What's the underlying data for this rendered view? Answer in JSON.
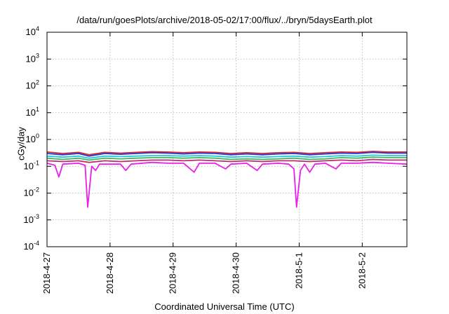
{
  "chart_data": {
    "type": "line",
    "title": "/data/run/goesPlots/archive/2018-05-02/17:00/flux/../bryn/5daysEarth.plot",
    "xlabel": "Coordinated Universal Time (UTC)",
    "ylabel": "cGy/day",
    "yscale": "log",
    "ylim": [
      0.0001,
      10000
    ],
    "y_ticks": [
      {
        "value": 0.0001,
        "mant": "10",
        "exp": "-4"
      },
      {
        "value": 0.001,
        "mant": "10",
        "exp": "-3"
      },
      {
        "value": 0.01,
        "mant": "10",
        "exp": "-2"
      },
      {
        "value": 0.1,
        "mant": "10",
        "exp": "-1"
      },
      {
        "value": 1,
        "mant": "10",
        "exp": "0"
      },
      {
        "value": 10,
        "mant": "10",
        "exp": "1"
      },
      {
        "value": 100,
        "mant": "10",
        "exp": "2"
      },
      {
        "value": 1000,
        "mant": "10",
        "exp": "3"
      },
      {
        "value": 10000,
        "mant": "10",
        "exp": "4"
      }
    ],
    "xlim": [
      "2018-04-27T00:00",
      "2018-05-02T17:00"
    ],
    "x_ticks": [
      {
        "value": "2018-04-27T00:00",
        "label": "2018-4-27"
      },
      {
        "value": "2018-04-28T00:00",
        "label": "2018-4-28"
      },
      {
        "value": "2018-04-29T00:00",
        "label": "2018-4-29"
      },
      {
        "value": "2018-04-30T00:00",
        "label": "2018-4-30"
      },
      {
        "value": "2018-05-01T00:00",
        "label": "2018-5-1"
      },
      {
        "value": "2018-05-02T00:00",
        "label": "2018-5-2"
      }
    ],
    "grid": true,
    "legend": "none",
    "series": [
      {
        "color": "#e0242c",
        "values": [
          [
            "2018-04-27T00:00",
            0.34
          ],
          [
            "2018-04-27T06:00",
            0.3
          ],
          [
            "2018-04-27T12:00",
            0.33
          ],
          [
            "2018-04-27T16:00",
            0.27
          ],
          [
            "2018-04-27T22:00",
            0.33
          ],
          [
            "2018-04-28T04:00",
            0.31
          ],
          [
            "2018-04-28T10:00",
            0.33
          ],
          [
            "2018-04-28T16:00",
            0.35
          ],
          [
            "2018-04-28T22:00",
            0.34
          ],
          [
            "2018-04-29T04:00",
            0.32
          ],
          [
            "2018-04-29T10:00",
            0.34
          ],
          [
            "2018-04-29T16:00",
            0.33
          ],
          [
            "2018-04-29T22:00",
            0.3
          ],
          [
            "2018-04-30T04:00",
            0.32
          ],
          [
            "2018-04-30T10:00",
            0.3
          ],
          [
            "2018-04-30T16:00",
            0.32
          ],
          [
            "2018-04-30T22:00",
            0.33
          ],
          [
            "2018-05-01T04:00",
            0.3
          ],
          [
            "2018-05-01T10:00",
            0.32
          ],
          [
            "2018-05-01T16:00",
            0.34
          ],
          [
            "2018-05-01T22:00",
            0.33
          ],
          [
            "2018-05-02T04:00",
            0.36
          ],
          [
            "2018-05-02T10:00",
            0.34
          ],
          [
            "2018-05-02T17:00",
            0.34
          ]
        ]
      },
      {
        "color": "#2a38d6",
        "values": [
          [
            "2018-04-27T00:00",
            0.3
          ],
          [
            "2018-04-27T06:00",
            0.27
          ],
          [
            "2018-04-27T12:00",
            0.3
          ],
          [
            "2018-04-27T16:00",
            0.24
          ],
          [
            "2018-04-27T22:00",
            0.3
          ],
          [
            "2018-04-28T04:00",
            0.28
          ],
          [
            "2018-04-28T10:00",
            0.3
          ],
          [
            "2018-04-28T16:00",
            0.32
          ],
          [
            "2018-04-28T22:00",
            0.31
          ],
          [
            "2018-04-29T04:00",
            0.29
          ],
          [
            "2018-04-29T10:00",
            0.31
          ],
          [
            "2018-04-29T16:00",
            0.3
          ],
          [
            "2018-04-29T22:00",
            0.27
          ],
          [
            "2018-04-30T04:00",
            0.29
          ],
          [
            "2018-04-30T10:00",
            0.27
          ],
          [
            "2018-04-30T16:00",
            0.29
          ],
          [
            "2018-04-30T22:00",
            0.3
          ],
          [
            "2018-05-01T04:00",
            0.27
          ],
          [
            "2018-05-01T10:00",
            0.29
          ],
          [
            "2018-05-01T16:00",
            0.31
          ],
          [
            "2018-05-01T22:00",
            0.3
          ],
          [
            "2018-05-02T04:00",
            0.33
          ],
          [
            "2018-05-02T10:00",
            0.31
          ],
          [
            "2018-05-02T17:00",
            0.31
          ]
        ]
      },
      {
        "color": "#20c8e0",
        "values": [
          [
            "2018-04-27T00:00",
            0.24
          ],
          [
            "2018-04-27T06:00",
            0.22
          ],
          [
            "2018-04-27T12:00",
            0.24
          ],
          [
            "2018-04-27T16:00",
            0.2
          ],
          [
            "2018-04-27T22:00",
            0.24
          ],
          [
            "2018-04-28T04:00",
            0.23
          ],
          [
            "2018-04-28T10:00",
            0.24
          ],
          [
            "2018-04-28T16:00",
            0.25
          ],
          [
            "2018-04-28T22:00",
            0.25
          ],
          [
            "2018-04-29T04:00",
            0.24
          ],
          [
            "2018-04-29T10:00",
            0.25
          ],
          [
            "2018-04-29T16:00",
            0.24
          ],
          [
            "2018-04-29T22:00",
            0.22
          ],
          [
            "2018-04-30T04:00",
            0.23
          ],
          [
            "2018-04-30T10:00",
            0.22
          ],
          [
            "2018-04-30T16:00",
            0.23
          ],
          [
            "2018-04-30T22:00",
            0.24
          ],
          [
            "2018-05-01T04:00",
            0.22
          ],
          [
            "2018-05-01T10:00",
            0.23
          ],
          [
            "2018-05-01T16:00",
            0.25
          ],
          [
            "2018-05-01T22:00",
            0.24
          ],
          [
            "2018-05-02T04:00",
            0.26
          ],
          [
            "2018-05-02T10:00",
            0.25
          ],
          [
            "2018-05-02T17:00",
            0.25
          ]
        ]
      },
      {
        "color": "#40b860",
        "values": [
          [
            "2018-04-27T00:00",
            0.2
          ],
          [
            "2018-04-27T06:00",
            0.18
          ],
          [
            "2018-04-27T12:00",
            0.2
          ],
          [
            "2018-04-27T16:00",
            0.17
          ],
          [
            "2018-04-27T22:00",
            0.2
          ],
          [
            "2018-04-28T04:00",
            0.19
          ],
          [
            "2018-04-28T10:00",
            0.2
          ],
          [
            "2018-04-28T16:00",
            0.21
          ],
          [
            "2018-04-28T22:00",
            0.21
          ],
          [
            "2018-04-29T04:00",
            0.2
          ],
          [
            "2018-04-29T10:00",
            0.21
          ],
          [
            "2018-04-29T16:00",
            0.2
          ],
          [
            "2018-04-29T22:00",
            0.18
          ],
          [
            "2018-04-30T04:00",
            0.19
          ],
          [
            "2018-04-30T10:00",
            0.18
          ],
          [
            "2018-04-30T16:00",
            0.19
          ],
          [
            "2018-04-30T22:00",
            0.2
          ],
          [
            "2018-05-01T04:00",
            0.18
          ],
          [
            "2018-05-01T10:00",
            0.19
          ],
          [
            "2018-05-01T16:00",
            0.21
          ],
          [
            "2018-05-01T22:00",
            0.2
          ],
          [
            "2018-05-02T04:00",
            0.22
          ],
          [
            "2018-05-02T10:00",
            0.21
          ],
          [
            "2018-05-02T17:00",
            0.21
          ]
        ]
      },
      {
        "color": "#c02870",
        "values": [
          [
            "2018-04-27T00:00",
            0.16
          ],
          [
            "2018-04-27T06:00",
            0.15
          ],
          [
            "2018-04-27T12:00",
            0.16
          ],
          [
            "2018-04-27T16:00",
            0.14
          ],
          [
            "2018-04-27T22:00",
            0.16
          ],
          [
            "2018-04-28T04:00",
            0.15
          ],
          [
            "2018-04-28T10:00",
            0.16
          ],
          [
            "2018-04-28T16:00",
            0.17
          ],
          [
            "2018-04-28T22:00",
            0.17
          ],
          [
            "2018-04-29T04:00",
            0.16
          ],
          [
            "2018-04-29T10:00",
            0.17
          ],
          [
            "2018-04-29T16:00",
            0.16
          ],
          [
            "2018-04-29T22:00",
            0.15
          ],
          [
            "2018-04-30T04:00",
            0.16
          ],
          [
            "2018-04-30T10:00",
            0.15
          ],
          [
            "2018-04-30T16:00",
            0.16
          ],
          [
            "2018-04-30T22:00",
            0.16
          ],
          [
            "2018-05-01T04:00",
            0.15
          ],
          [
            "2018-05-01T10:00",
            0.16
          ],
          [
            "2018-05-01T16:00",
            0.17
          ],
          [
            "2018-05-01T22:00",
            0.16
          ],
          [
            "2018-05-02T04:00",
            0.18
          ],
          [
            "2018-05-02T10:00",
            0.17
          ],
          [
            "2018-05-02T17:00",
            0.17
          ]
        ]
      },
      {
        "color": "#e820e8",
        "values": [
          [
            "2018-04-27T00:00",
            0.13
          ],
          [
            "2018-04-27T03:00",
            0.11
          ],
          [
            "2018-04-27T04:30",
            0.04
          ],
          [
            "2018-04-27T06:00",
            0.12
          ],
          [
            "2018-04-27T12:00",
            0.13
          ],
          [
            "2018-04-27T14:30",
            0.11
          ],
          [
            "2018-04-27T15:30",
            0.003
          ],
          [
            "2018-04-27T17:00",
            0.1
          ],
          [
            "2018-04-27T18:30",
            0.07
          ],
          [
            "2018-04-27T20:00",
            0.12
          ],
          [
            "2018-04-28T04:00",
            0.12
          ],
          [
            "2018-04-28T06:00",
            0.07
          ],
          [
            "2018-04-28T08:00",
            0.12
          ],
          [
            "2018-04-28T16:00",
            0.14
          ],
          [
            "2018-04-28T22:00",
            0.13
          ],
          [
            "2018-04-29T04:00",
            0.13
          ],
          [
            "2018-04-29T08:00",
            0.06
          ],
          [
            "2018-04-29T10:00",
            0.13
          ],
          [
            "2018-04-29T16:00",
            0.13
          ],
          [
            "2018-04-29T20:00",
            0.08
          ],
          [
            "2018-04-29T22:00",
            0.12
          ],
          [
            "2018-04-30T04:00",
            0.13
          ],
          [
            "2018-04-30T08:00",
            0.07
          ],
          [
            "2018-04-30T10:00",
            0.12
          ],
          [
            "2018-04-30T16:00",
            0.13
          ],
          [
            "2018-04-30T20:00",
            0.12
          ],
          [
            "2018-04-30T22:00",
            0.08
          ],
          [
            "2018-04-30T23:00",
            0.003
          ],
          [
            "2018-05-01T00:30",
            0.07
          ],
          [
            "2018-05-01T02:00",
            0.12
          ],
          [
            "2018-05-01T04:00",
            0.06
          ],
          [
            "2018-05-01T06:00",
            0.12
          ],
          [
            "2018-05-01T10:00",
            0.13
          ],
          [
            "2018-05-01T14:00",
            0.08
          ],
          [
            "2018-05-01T16:00",
            0.13
          ],
          [
            "2018-05-01T22:00",
            0.13
          ],
          [
            "2018-05-02T04:00",
            0.14
          ],
          [
            "2018-05-02T10:00",
            0.13
          ],
          [
            "2018-05-02T17:00",
            0.12
          ]
        ]
      }
    ]
  }
}
